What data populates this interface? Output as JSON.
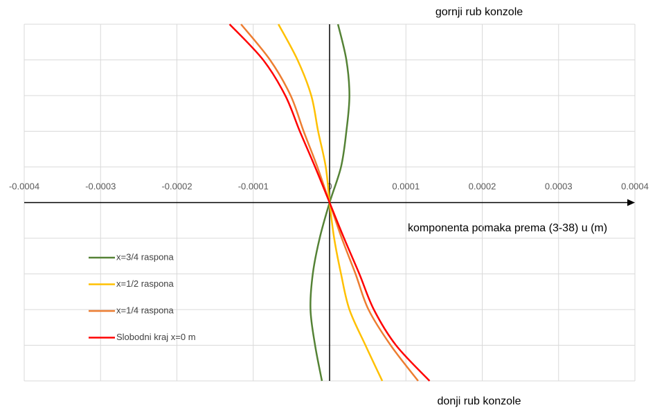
{
  "chart_data": {
    "type": "line",
    "title": "gornji rub konzole",
    "subtitle": "donji rub konzole",
    "x_label": "komponenta pomaka prema (3-38) u (m)",
    "xlim": [
      -0.0004,
      0.0004
    ],
    "xticks": [
      -0.0004,
      -0.0003,
      -0.0002,
      -0.0001,
      0,
      0.0001,
      0.0002,
      0.0003,
      0.0004
    ],
    "ylim": [
      -5,
      5
    ],
    "yticks": [
      -5,
      -4,
      -3,
      -2,
      -1,
      0,
      1,
      2,
      3,
      4,
      5
    ],
    "y": [
      5,
      4,
      3,
      2,
      1,
      0,
      -1,
      -2,
      -3,
      -4,
      -5
    ],
    "grid": true,
    "legend": "left",
    "series": [
      {
        "name": "x=3/4 raspona",
        "color": "#548235",
        "values": [
          1.1e-05,
          2.2e-05,
          2.6e-05,
          2.2e-05,
          1.5e-05,
          0,
          -1.3e-05,
          -2.2e-05,
          -2.5e-05,
          -1.9e-05,
          -1e-05
        ]
      },
      {
        "name": "x=1/2 raspona",
        "color": "#ffc000",
        "values": [
          -6.7e-05,
          -4.2e-05,
          -2.4e-05,
          -1.5e-05,
          -5e-06,
          0,
          6e-06,
          1.5e-05,
          2.6e-05,
          4.7e-05,
          6.9e-05
        ]
      },
      {
        "name": "x=1/4 raspona",
        "color": "#ed7d31",
        "values": [
          -0.000116,
          -7.8e-05,
          -5.1e-05,
          -3.4e-05,
          -1.6e-05,
          0,
          1.6e-05,
          3.4e-05,
          5.1e-05,
          8e-05,
          0.000116
        ]
      },
      {
        "name": "Slobodni kraj x=0 m",
        "color": "#ff0000",
        "values": [
          -0.000131,
          -8.7e-05,
          -5.8e-05,
          -3.9e-05,
          -1.9e-05,
          0,
          1.9e-05,
          3.9e-05,
          5.8e-05,
          8.7e-05,
          0.000131
        ]
      }
    ]
  }
}
